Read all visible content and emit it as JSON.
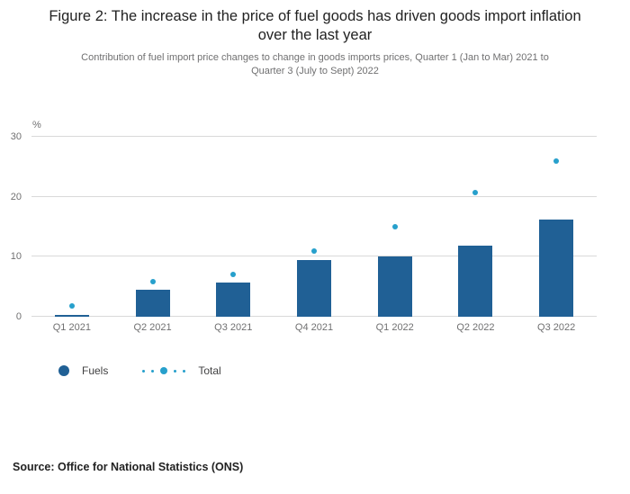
{
  "title": "Figure 2: The increase in the price of fuel goods has driven goods import inflation over the last year",
  "subtitle": "Contribution of fuel import price changes to change in goods imports prices, Quarter 1 (Jan to Mar) 2021 to Quarter 3 (July to Sept) 2022",
  "source": "Source: Office for National Statistics (ONS)",
  "colors": {
    "fuels_bar": "#206095",
    "total_dot": "#27a0cc",
    "gridline": "#d9d9d9",
    "axis_text": "#707071"
  },
  "chart_data": {
    "type": "bar",
    "title": "Figure 2: The increase in the price of fuel goods has driven goods import inflation over the last year",
    "subtitle": "Contribution of fuel import price changes to change in goods imports prices, Quarter 1 (Jan to Mar) 2021 to Quarter 3 (July to Sept) 2022",
    "categories": [
      "Q1 2021",
      "Q2 2021",
      "Q3 2021",
      "Q4 2021",
      "Q1 2022",
      "Q2 2022",
      "Q3 2022"
    ],
    "series": [
      {
        "name": "Fuels",
        "type": "bar",
        "color": "#206095",
        "values": [
          0.3,
          4.5,
          5.7,
          9.5,
          10.0,
          11.8,
          16.2
        ]
      },
      {
        "name": "Total",
        "type": "scatter",
        "color": "#27a0cc",
        "values": [
          1.8,
          5.8,
          7.0,
          11.0,
          15.0,
          20.7,
          26.0
        ]
      }
    ],
    "xlabel": "",
    "ylabel": "%",
    "yticks": [
      0,
      10,
      20,
      30
    ],
    "ylim": [
      0,
      30
    ],
    "grid": true,
    "legend_position": "bottom"
  }
}
